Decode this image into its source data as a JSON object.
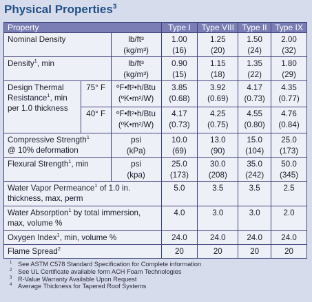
{
  "title": "Physical Properties",
  "title_note": "3",
  "columns": [
    "Property",
    "Type I",
    "Type VIII",
    "Type II",
    "Type IX"
  ],
  "rows": {
    "nominal_density": {
      "label": "Nominal Density",
      "unit1": "lb/ft³",
      "unit2": "(kg/m³)",
      "v": [
        [
          "1.00",
          "(16)"
        ],
        [
          "1.25",
          "(20)"
        ],
        [
          "1.50",
          "(24)"
        ],
        [
          "2.00",
          "(32)"
        ]
      ]
    },
    "density": {
      "label": "Density",
      "note": "1",
      "label_suffix": ", min",
      "unit1": "lb/ft³",
      "unit2": "(kg/m³)",
      "v": [
        [
          "0.90",
          "(15)"
        ],
        [
          "1.15",
          "(18)"
        ],
        [
          "1.35",
          "(22)"
        ],
        [
          "1.80",
          "(29)"
        ]
      ]
    },
    "thermal": {
      "label1": "Design Thermal",
      "label2a": "Resistance",
      "note": "1",
      "label2b": ", min",
      "label3": "per 1.0 thickness",
      "t75": "75° F",
      "t40": "40° F",
      "unit1": "ºF•ft²•h/Btu",
      "unit2": "(ºK•m²/W)",
      "v75": [
        [
          "3.85",
          "(0.68)"
        ],
        [
          "3.92",
          "(0.69)"
        ],
        [
          "4.17",
          "(0.73)"
        ],
        [
          "4.35",
          "(0.77)"
        ]
      ],
      "v40": [
        [
          "4.17",
          "(0.73)"
        ],
        [
          "4.25",
          "(0.75)"
        ],
        [
          "4.55",
          "(0.80)"
        ],
        [
          "4.76",
          "(0.84)"
        ]
      ]
    },
    "compressive": {
      "label1": "Compressive Strength",
      "note": "1",
      "label2": "@ 10% deformation",
      "unit1": "psi",
      "unit2": "(kPa)",
      "v": [
        [
          "10.0",
          "(69)"
        ],
        [
          "13.0",
          "(90)"
        ],
        [
          "15.0",
          "(104)"
        ],
        [
          "25.0",
          "(173)"
        ]
      ]
    },
    "flexural": {
      "label": "Flexural Strength",
      "note": "1",
      "label_suffix": ", min",
      "unit1": "psi",
      "unit2": "(kpa)",
      "v": [
        [
          "25.0",
          "(173)"
        ],
        [
          "30.0",
          "(208)"
        ],
        [
          "35.0",
          "(242)"
        ],
        [
          "50.0",
          "(345)"
        ]
      ]
    },
    "water_vapor": {
      "label1": "Water Vapor Permeance",
      "note": "1",
      "label1b": " of 1.0 in.",
      "label2": "thickness, max, perm",
      "v": [
        "5.0",
        "3.5",
        "3.5",
        "2.5"
      ]
    },
    "water_abs": {
      "label1": "Water Absorption",
      "note": "1",
      "label1b": " by total immersion,",
      "label2": "max, volume %",
      "v": [
        "4.0",
        "3.0",
        "3.0",
        "2.0"
      ]
    },
    "oxygen": {
      "label": "Oxygen Index",
      "note": "1",
      "label_suffix": ", min, volume %",
      "v": [
        "24.0",
        "24.0",
        "24.0",
        "24.0"
      ]
    },
    "flame": {
      "label": "Flame Spread",
      "note": "2",
      "v": [
        "20",
        "20",
        "20",
        "20"
      ]
    }
  },
  "footnotes": [
    {
      "mark": "1",
      "text": "See ASTM C578 Standard Specification for Complete information"
    },
    {
      "mark": "2",
      "text": "See UL Certificate available form ACH Foam Technologies"
    },
    {
      "mark": "3",
      "text": "R-Value Warranty Available Upon Request"
    },
    {
      "mark": "4",
      "text": "Average Thickness for Tapered Roof Systems"
    }
  ],
  "colors": {
    "title": "#1f4f86",
    "header_bg": "#7a7eb4",
    "page_bg": "#d7dcec",
    "border": "#3f437a"
  }
}
